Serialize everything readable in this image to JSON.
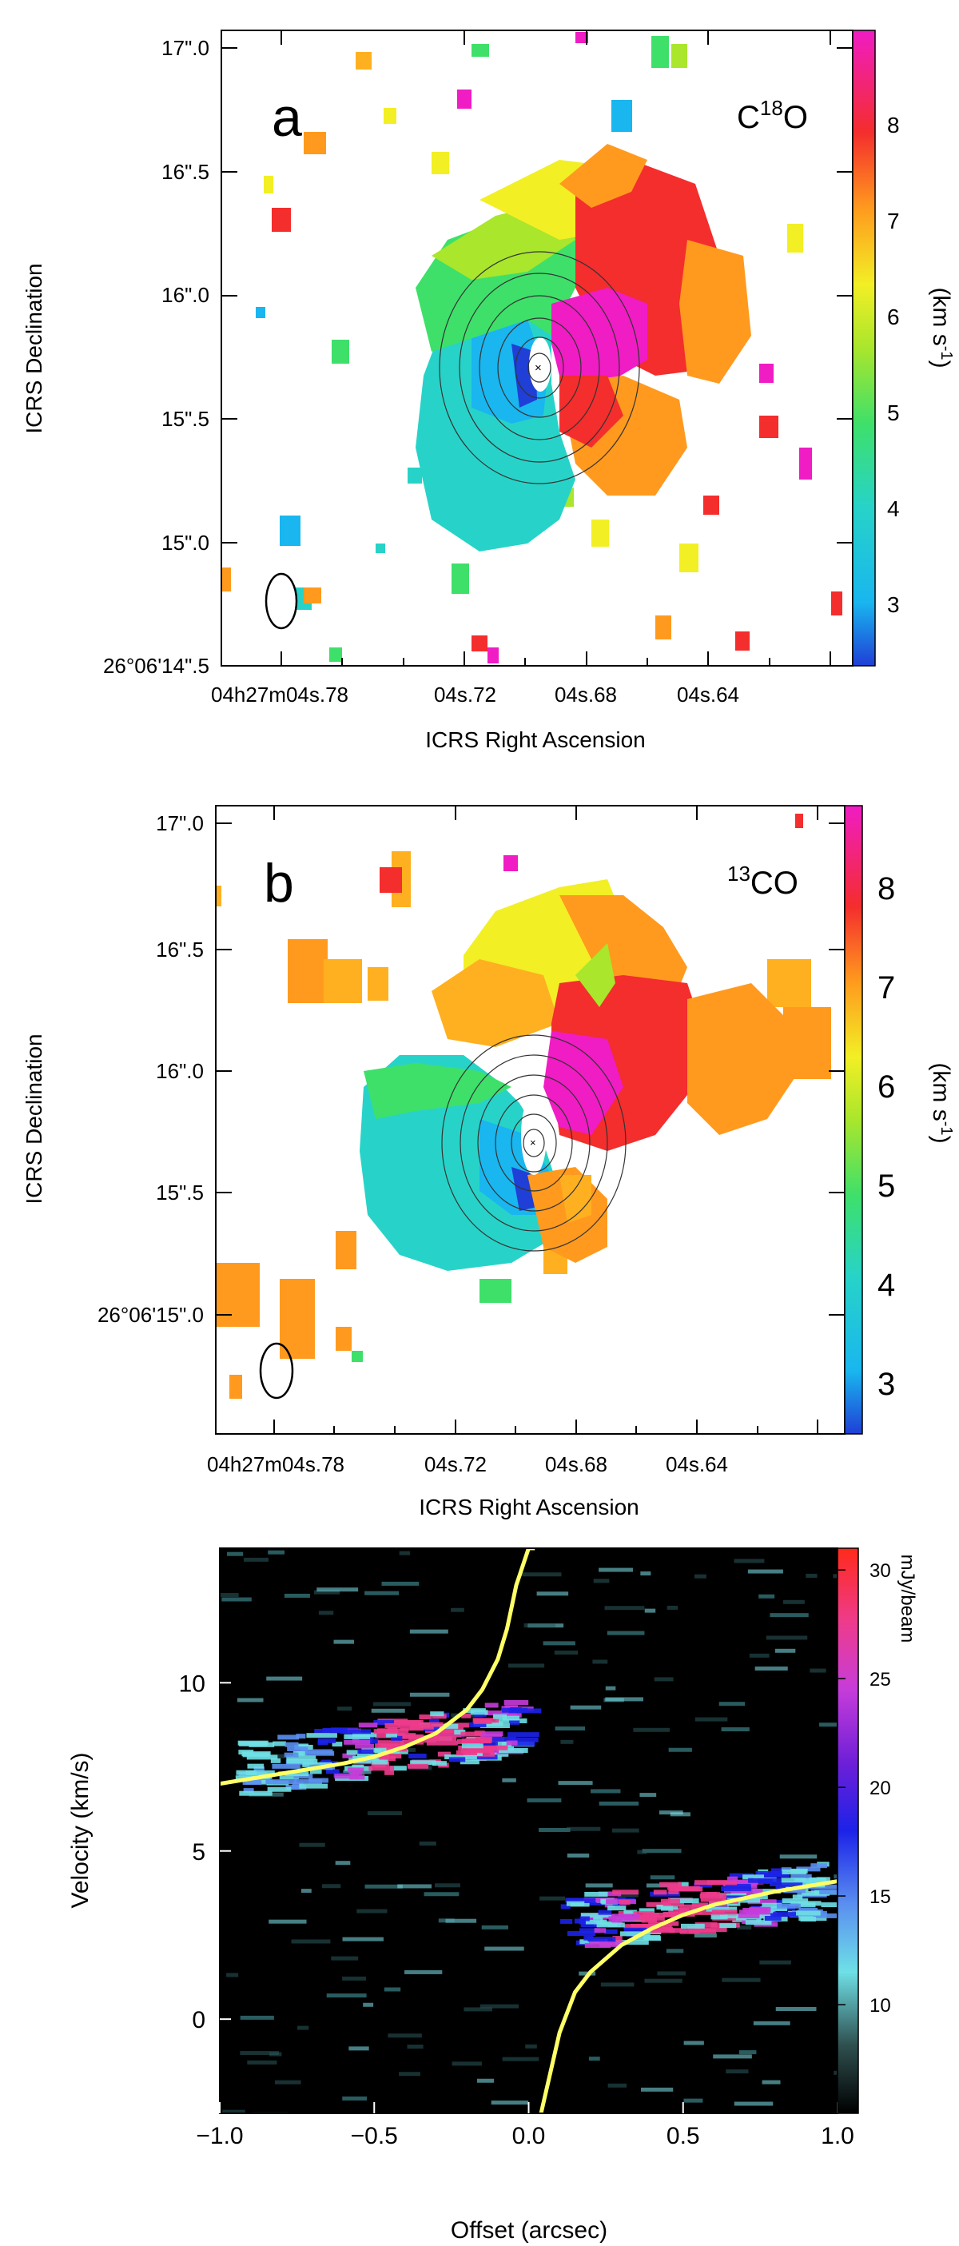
{
  "panel_a": {
    "panel_letter": "a",
    "molecule": "C",
    "molecule_superscript": "18",
    "molecule_suffix": "O",
    "xlabel": "ICRS Right Ascension",
    "ylabel": "ICRS Declination",
    "colorbar_label": "(km s",
    "colorbar_label_sup": "-1",
    "colorbar_label_end": ")",
    "x_tick_labels": [
      "04h27m04s.78",
      "04s.72",
      "04s.68",
      "04s.64"
    ],
    "y_tick_labels": [
      "26°06'14\".5",
      "15\".0",
      "15\".5",
      "16\".0",
      "16\".5",
      "17\".0"
    ],
    "colorbar_ticks": [
      "3",
      "4",
      "5",
      "6",
      "7",
      "8"
    ],
    "colorbar_range": [
      2.3,
      8.9
    ]
  },
  "panel_b": {
    "panel_letter": "b",
    "molecule_superscript": "13",
    "molecule": "CO",
    "xlabel": "ICRS Right Ascension",
    "ylabel": "ICRS Declination",
    "colorbar_label": "(km s",
    "colorbar_label_sup": "-1",
    "colorbar_label_end": ")",
    "x_tick_labels": [
      "04h27m04s.78",
      "04s.72",
      "04s.68",
      "04s.64"
    ],
    "y_tick_labels": [
      "26°06'15\".0",
      "15\".5",
      "16\".0",
      "16\".5",
      "17\".0"
    ],
    "colorbar_ticks": [
      "3",
      "4",
      "5",
      "6",
      "7",
      "8"
    ],
    "colorbar_range": [
      2.3,
      8.9
    ]
  },
  "chart_data": {
    "type": "heatmap",
    "xlabel": "Offset (arcsec)",
    "ylabel": "Velocity (km/s)",
    "xlim": [
      -1.0,
      1.0
    ],
    "ylim": [
      -2.8,
      14.0
    ],
    "x_ticks": [
      "−1.0",
      "−0.5",
      "0.0",
      "0.5",
      "1.0"
    ],
    "y_ticks": [
      "0",
      "5",
      "10"
    ],
    "colorbar_label": "mJy/beam",
    "colorbar_ticks": [
      "10",
      "15",
      "20",
      "25",
      "30"
    ],
    "colorbar_range": [
      5,
      31
    ],
    "grid": false,
    "emission_lobes": [
      {
        "x_range": [
          -0.95,
          -0.05
        ],
        "v_center": 8.0,
        "peak_mJy": 29,
        "peak_offset": -0.35
      },
      {
        "x_range": [
          0.1,
          0.95
        ],
        "v_center": 3.4,
        "peak_mJy": 29,
        "peak_offset": 0.45
      }
    ],
    "series": [
      {
        "x": [
          -1.0,
          -0.8,
          -0.6,
          -0.5,
          -0.4,
          -0.3,
          -0.2,
          -0.15,
          -0.1,
          -0.07,
          -0.04,
          0.0,
          0.02
        ],
        "y": [
          7.0,
          7.3,
          7.6,
          7.8,
          8.1,
          8.5,
          9.2,
          9.8,
          10.7,
          11.6,
          12.9,
          14.0,
          14.0
        ]
      },
      {
        "x": [
          0.04,
          0.07,
          0.1,
          0.15,
          0.2,
          0.3,
          0.4,
          0.5,
          0.6,
          0.8,
          1.0
        ],
        "y": [
          -2.8,
          -1.6,
          -0.4,
          0.8,
          1.4,
          2.2,
          2.7,
          3.1,
          3.4,
          3.8,
          4.1
        ]
      }
    ],
    "curve_color": "#ffff66"
  }
}
